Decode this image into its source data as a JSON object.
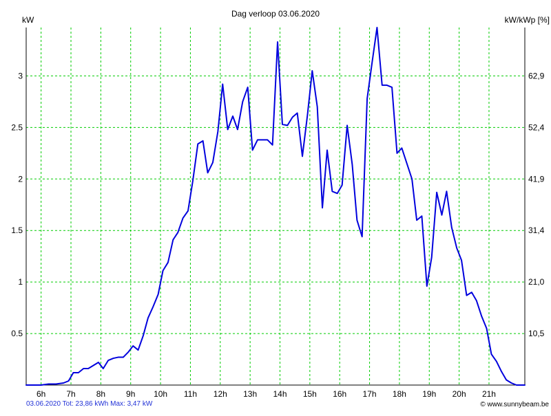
{
  "header": {
    "title": "Dag  verloop 03.06.2020",
    "left_unit": "kW",
    "right_unit": "kW/kWp [%]"
  },
  "footer": {
    "summary": "03.06.2020 Tot: 23,86 kWh Max: 3,47 kW",
    "credit": "© www.sunnybeam.be"
  },
  "colors": {
    "line": "#0000dd",
    "grid": "#00cc00",
    "axis": "#000000",
    "footer_text": "#1f2fd6"
  },
  "chart_data": {
    "type": "line",
    "title": "Dag  verloop 03.06.2020",
    "ylabel": "kW",
    "y2label": "kW/kWp [%]",
    "xlim": [
      5.5,
      22.2
    ],
    "ylim": [
      0,
      3.47
    ],
    "grid": true,
    "x_ticks": [
      {
        "value": 6,
        "label": "6h"
      },
      {
        "value": 7,
        "label": "7h"
      },
      {
        "value": 8,
        "label": "8h"
      },
      {
        "value": 9,
        "label": "9h"
      },
      {
        "value": 10,
        "label": "10h"
      },
      {
        "value": 11,
        "label": "11h"
      },
      {
        "value": 12,
        "label": "12h"
      },
      {
        "value": 13,
        "label": "13h"
      },
      {
        "value": 14,
        "label": "14h"
      },
      {
        "value": 15,
        "label": "15h"
      },
      {
        "value": 16,
        "label": "16h"
      },
      {
        "value": 17,
        "label": "17h"
      },
      {
        "value": 18,
        "label": "18h"
      },
      {
        "value": 19,
        "label": "19h"
      },
      {
        "value": 20,
        "label": "20h"
      },
      {
        "value": 21,
        "label": "21h"
      }
    ],
    "y_ticks": [
      {
        "value": 0.5,
        "label": "0.5"
      },
      {
        "value": 1,
        "label": "1"
      },
      {
        "value": 1.5,
        "label": "1.5"
      },
      {
        "value": 2,
        "label": "2"
      },
      {
        "value": 2.5,
        "label": "2.5"
      },
      {
        "value": 3,
        "label": "3"
      }
    ],
    "y2_ticks": [
      {
        "value": 0.5,
        "label": "10,5"
      },
      {
        "value": 1,
        "label": "21,0"
      },
      {
        "value": 1.5,
        "label": "31,4"
      },
      {
        "value": 2,
        "label": "41,9"
      },
      {
        "value": 2.5,
        "label": "52,4"
      },
      {
        "value": 3,
        "label": "62,9"
      }
    ],
    "series": [
      {
        "x": [
          5.5,
          5.75,
          6.0,
          6.25,
          6.5,
          6.75,
          6.92,
          7.08,
          7.25,
          7.42,
          7.58,
          7.75,
          7.92,
          8.08,
          8.25,
          8.42,
          8.58,
          8.75,
          8.92,
          9.08,
          9.25,
          9.42,
          9.58,
          9.75,
          9.92,
          10.08,
          10.25,
          10.42,
          10.58,
          10.75,
          10.92,
          11.08,
          11.25,
          11.42,
          11.58,
          11.75,
          11.92,
          12.08,
          12.25,
          12.42,
          12.58,
          12.75,
          12.92,
          13.08,
          13.25,
          13.42,
          13.58,
          13.75,
          13.92,
          14.08,
          14.25,
          14.42,
          14.58,
          14.75,
          14.92,
          15.08,
          15.25,
          15.42,
          15.58,
          15.75,
          15.92,
          16.08,
          16.25,
          16.42,
          16.58,
          16.75,
          16.92,
          17.08,
          17.25,
          17.42,
          17.58,
          17.75,
          17.92,
          18.08,
          18.25,
          18.42,
          18.58,
          18.75,
          18.92,
          19.08,
          19.25,
          19.42,
          19.58,
          19.75,
          19.92,
          20.08,
          20.25,
          20.42,
          20.58,
          20.75,
          20.92,
          21.08,
          21.25,
          21.42,
          21.58,
          21.75,
          21.92,
          22.2
        ],
        "values": [
          0.0,
          0.0,
          0.0,
          0.01,
          0.01,
          0.02,
          0.04,
          0.12,
          0.12,
          0.16,
          0.16,
          0.19,
          0.22,
          0.16,
          0.24,
          0.26,
          0.27,
          0.27,
          0.32,
          0.38,
          0.34,
          0.48,
          0.65,
          0.76,
          0.88,
          1.11,
          1.19,
          1.41,
          1.48,
          1.62,
          1.69,
          1.98,
          2.34,
          2.37,
          2.06,
          2.16,
          2.46,
          2.92,
          2.48,
          2.61,
          2.48,
          2.75,
          2.89,
          2.28,
          2.38,
          2.38,
          2.38,
          2.33,
          3.33,
          2.53,
          2.52,
          2.6,
          2.64,
          2.22,
          2.62,
          3.05,
          2.7,
          1.72,
          2.28,
          1.88,
          1.86,
          1.94,
          2.52,
          2.14,
          1.6,
          1.44,
          2.78,
          3.12,
          3.47,
          2.91,
          2.91,
          2.89,
          2.25,
          2.3,
          2.15,
          2.0,
          1.6,
          1.64,
          0.96,
          1.24,
          1.87,
          1.65,
          1.88,
          1.53,
          1.33,
          1.21,
          0.87,
          0.9,
          0.82,
          0.67,
          0.55,
          0.3,
          0.23,
          0.13,
          0.05,
          0.02,
          0.0,
          0.0
        ]
      }
    ]
  }
}
